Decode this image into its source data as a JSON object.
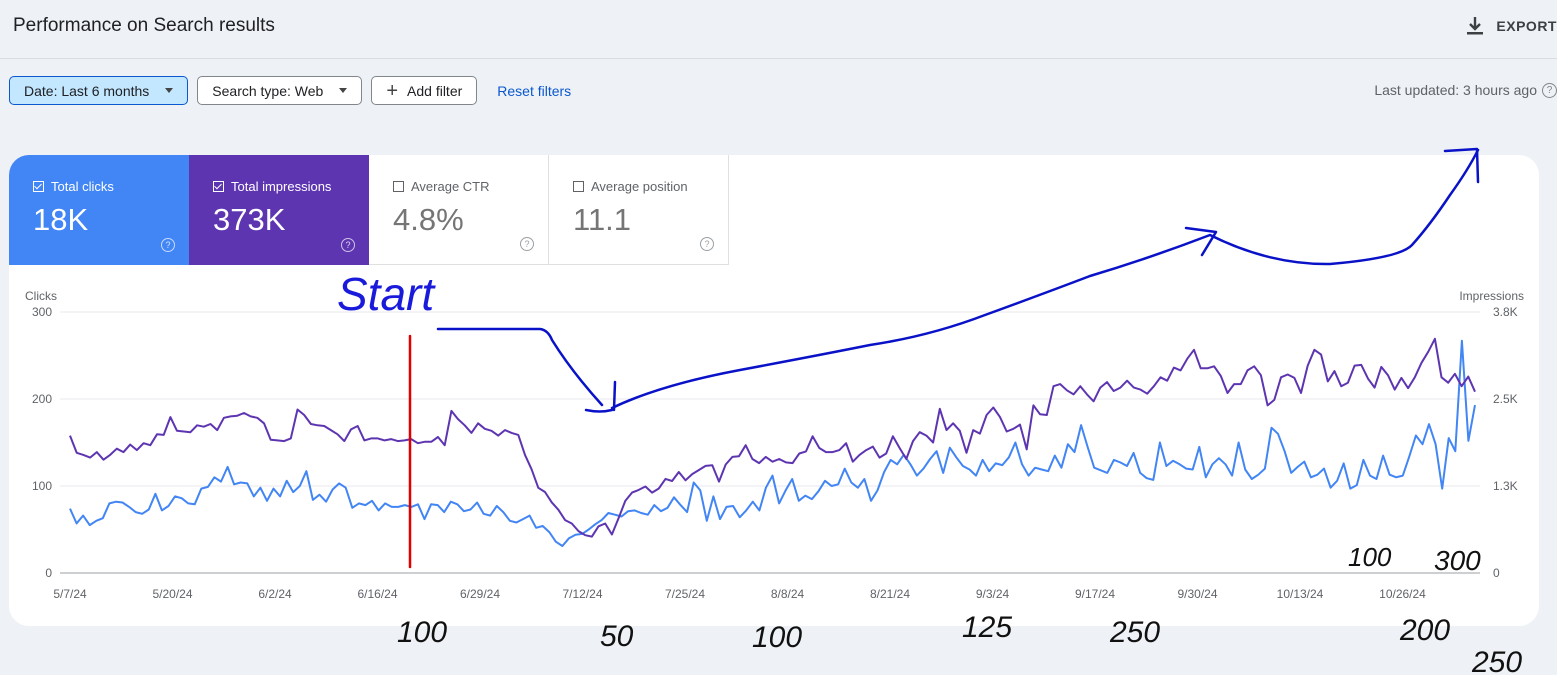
{
  "header": {
    "title": "Performance on Search results",
    "export_label": "EXPORT"
  },
  "filters": {
    "date": "Date: Last 6 months",
    "search_type": "Search type: Web",
    "add_filter": "Add filter",
    "reset": "Reset filters"
  },
  "last_updated": "Last updated: 3 hours ago",
  "metrics": {
    "clicks": {
      "label": "Total clicks",
      "value": "18K",
      "checked": true,
      "color": "#4285f4"
    },
    "impressions": {
      "label": "Total impressions",
      "value": "373K",
      "checked": true,
      "color": "#5e35b1"
    },
    "ctr": {
      "label": "Average CTR",
      "value": "4.8%",
      "checked": false
    },
    "position": {
      "label": "Average position",
      "value": "11.1",
      "checked": false
    }
  },
  "annotations": {
    "start": "Start",
    "numbers": [
      "100",
      "50",
      "100",
      "125",
      "250",
      "200",
      "250",
      "100",
      "300"
    ]
  },
  "chart_data": {
    "type": "line",
    "ylabel_left": "Clicks",
    "ylabel_right": "Impressions",
    "y_left_ticks": [
      "300",
      "200",
      "100",
      "0"
    ],
    "y_right_ticks": [
      "3.8K",
      "2.5K",
      "1.3K",
      "0"
    ],
    "ylim_left": [
      0,
      300
    ],
    "ylim_right": [
      0,
      3800
    ],
    "x_ticks": [
      "5/7/24",
      "5/20/24",
      "6/2/24",
      "6/16/24",
      "6/29/24",
      "7/12/24",
      "7/25/24",
      "8/8/24",
      "8/21/24",
      "9/3/24",
      "9/17/24",
      "9/30/24",
      "10/13/24",
      "10/26/24"
    ],
    "grid": "horizontal",
    "series": [
      {
        "name": "Clicks",
        "color": "#4285f4",
        "axis": "left",
        "values": [
          74,
          57,
          66,
          55,
          60,
          63,
          80,
          82,
          81,
          76,
          70,
          68,
          73,
          91,
          72,
          77,
          88,
          86,
          80,
          79,
          97,
          99,
          110,
          105,
          122,
          102,
          104,
          103,
          88,
          98,
          83,
          97,
          88,
          106,
          93,
          100,
          117,
          84,
          90,
          82,
          96,
          103,
          98,
          75,
          80,
          78,
          83,
          72,
          80,
          76,
          76,
          78,
          76,
          79,
          62,
          79,
          78,
          70,
          82,
          79,
          71,
          73,
          81,
          68,
          66,
          77,
          70,
          60,
          58,
          62,
          66,
          52,
          54,
          47,
          36,
          31,
          40,
          44,
          45,
          50,
          56,
          61,
          69,
          67,
          65,
          71,
          72,
          69,
          67,
          78,
          71,
          75,
          87,
          78,
          70,
          104,
          95,
          60,
          88,
          62,
          76,
          77,
          64,
          72,
          82,
          72,
          98,
          112,
          80,
          95,
          108,
          83,
          89,
          85,
          94,
          106,
          100,
          102,
          120,
          104,
          98,
          108,
          83,
          95,
          116,
          130,
          125,
          136,
          125,
          112,
          120,
          131,
          140,
          115,
          144,
          133,
          123,
          119,
          112,
          130,
          117,
          126,
          124,
          133,
          150,
          125,
          112,
          121,
          119,
          117,
          135,
          121,
          148,
          139,
          170,
          145,
          121,
          118,
          115,
          130,
          127,
          123,
          138,
          115,
          109,
          107,
          150,
          123,
          129,
          125,
          120,
          119,
          145,
          110,
          125,
          132,
          125,
          112,
          150,
          119,
          108,
          113,
          120,
          167,
          160,
          140,
          115,
          122,
          128,
          110,
          113,
          120,
          98,
          106,
          126,
          97,
          101,
          130,
          112,
          108,
          135,
          113,
          110,
          112,
          134,
          158,
          148,
          171,
          148,
          97,
          155,
          140,
          267,
          152,
          193
        ]
      },
      {
        "name": "Impressions",
        "color": "#5e35b1",
        "axis": "right",
        "values": [
          2000,
          1750,
          1720,
          1680,
          1760,
          1650,
          1720,
          1810,
          1760,
          1870,
          1790,
          1890,
          1860,
          2020,
          2010,
          2270,
          2070,
          2060,
          2050,
          2150,
          2130,
          2170,
          2080,
          2260,
          2280,
          2290,
          2330,
          2280,
          2260,
          2180,
          1940,
          1930,
          1920,
          1960,
          2380,
          2300,
          2170,
          2150,
          2140,
          2080,
          2020,
          1920,
          2090,
          2140,
          1930,
          1960,
          1960,
          1930,
          1950,
          1920,
          1930,
          1950,
          1890,
          1910,
          1910,
          1980,
          1860,
          2360,
          2240,
          2150,
          2040,
          2180,
          2100,
          2070,
          2000,
          2080,
          2040,
          2010,
          1720,
          1510,
          1240,
          1180,
          1030,
          920,
          770,
          720,
          610,
          550,
          530,
          680,
          720,
          560,
          800,
          1050,
          1170,
          1210,
          1260,
          1170,
          1230,
          1370,
          1340,
          1470,
          1350,
          1440,
          1500,
          1560,
          1570,
          1330,
          1580,
          1690,
          1700,
          1860,
          1660,
          1600,
          1690,
          1620,
          1660,
          1610,
          1600,
          1740,
          1770,
          1990,
          1820,
          1760,
          1760,
          1790,
          1890,
          1620,
          1720,
          1790,
          1840,
          1680,
          1740,
          1990,
          1820,
          1660,
          1920,
          2050,
          2000,
          1900,
          2390,
          2080,
          2180,
          2070,
          1750,
          2080,
          2030,
          2300,
          2410,
          2270,
          2060,
          2100,
          2160,
          1800,
          2440,
          2310,
          2300,
          2720,
          2750,
          2660,
          2600,
          2720,
          2600,
          2500,
          2700,
          2780,
          2650,
          2700,
          2800,
          2700,
          2670,
          2610,
          2720,
          2850,
          2800,
          2990,
          2950,
          3120,
          3250,
          2980,
          2980,
          3010,
          2870,
          2620,
          2750,
          2750,
          2950,
          3010,
          2880,
          2440,
          2520,
          2850,
          2890,
          2840,
          2620,
          3020,
          3250,
          3180,
          2790,
          2940,
          2720,
          2770,
          3020,
          3030,
          2830,
          2700,
          3000,
          2880,
          2670,
          2840,
          2690,
          2850,
          3060,
          3220,
          3410,
          2850,
          2770,
          2900,
          2720,
          2860,
          2640
        ]
      }
    ]
  }
}
